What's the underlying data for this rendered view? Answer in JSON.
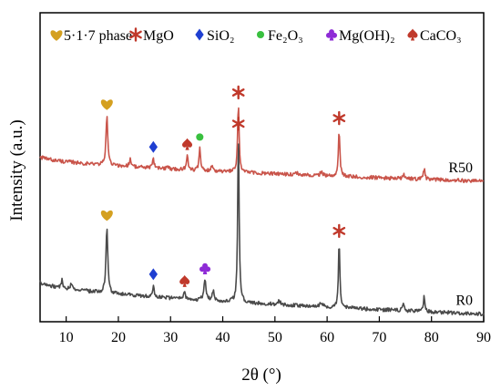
{
  "chart_data": {
    "type": "line",
    "xlabel": "2θ (°)",
    "ylabel": "Intensity (a.u.)",
    "xlim": [
      5,
      90
    ],
    "xticks": [
      10,
      20,
      30,
      40,
      50,
      60,
      70,
      80,
      90
    ],
    "ylim": [
      0,
      1
    ],
    "grid": false,
    "legend": {
      "placement": "top",
      "entries": [
        {
          "symbol": "heart",
          "color": "#d4a020",
          "label": "5·1·7 phase"
        },
        {
          "symbol": "asterisk",
          "color": "#c0392b",
          "label": "MgO"
        },
        {
          "symbol": "diamond",
          "color": "#1f3fd1",
          "label": "SiO₂"
        },
        {
          "symbol": "circle",
          "color": "#39c03f",
          "label": "Fe₂O₃"
        },
        {
          "symbol": "club",
          "color": "#8e2bd6",
          "label": "Mg(OH)₂"
        },
        {
          "symbol": "spade",
          "color": "#c0392b",
          "label": "CaCO₃"
        }
      ]
    },
    "series": [
      {
        "name": "R50",
        "color": "#c9544a",
        "baseline": 0.535,
        "drift": -0.08,
        "peaks": [
          {
            "x": 17.8,
            "height": 0.16,
            "width": 0.35
          },
          {
            "x": 22.3,
            "height": 0.025,
            "width": 0.4
          },
          {
            "x": 26.7,
            "height": 0.03,
            "width": 0.3
          },
          {
            "x": 29.4,
            "height": 0.015,
            "width": 0.3
          },
          {
            "x": 33.2,
            "height": 0.045,
            "width": 0.35
          },
          {
            "x": 35.6,
            "height": 0.07,
            "width": 0.3
          },
          {
            "x": 38.0,
            "height": 0.02,
            "width": 0.4
          },
          {
            "x": 43.0,
            "height": 0.22,
            "width": 0.3
          },
          {
            "x": 54.0,
            "height": 0.012,
            "width": 0.4
          },
          {
            "x": 58.9,
            "height": 0.015,
            "width": 0.4
          },
          {
            "x": 62.3,
            "height": 0.15,
            "width": 0.3
          },
          {
            "x": 74.7,
            "height": 0.015,
            "width": 0.3
          },
          {
            "x": 78.6,
            "height": 0.035,
            "width": 0.3
          }
        ]
      },
      {
        "name": "R0",
        "color": "#4a4a4a",
        "baseline": 0.13,
        "drift": -0.105,
        "peaks": [
          {
            "x": 9.2,
            "height": 0.025,
            "width": 0.3
          },
          {
            "x": 11.0,
            "height": 0.02,
            "width": 0.3
          },
          {
            "x": 17.8,
            "height": 0.215,
            "width": 0.35
          },
          {
            "x": 26.7,
            "height": 0.035,
            "width": 0.3
          },
          {
            "x": 32.7,
            "height": 0.02,
            "width": 0.35
          },
          {
            "x": 36.6,
            "height": 0.065,
            "width": 0.45
          },
          {
            "x": 38.2,
            "height": 0.03,
            "width": 0.4
          },
          {
            "x": 43.0,
            "height": 0.54,
            "width": 0.28
          },
          {
            "x": 50.8,
            "height": 0.012,
            "width": 0.5
          },
          {
            "x": 58.9,
            "height": 0.015,
            "width": 0.5
          },
          {
            "x": 62.3,
            "height": 0.21,
            "width": 0.28
          },
          {
            "x": 74.6,
            "height": 0.02,
            "width": 0.3
          },
          {
            "x": 78.6,
            "height": 0.05,
            "width": 0.3
          }
        ]
      }
    ],
    "annotations": [
      {
        "series": "R50",
        "x": 17.8,
        "symbol": "heart",
        "color": "#d4a020"
      },
      {
        "series": "R50",
        "x": 26.7,
        "symbol": "diamond",
        "color": "#1f3fd1"
      },
      {
        "series": "R50",
        "x": 33.2,
        "symbol": "spade",
        "color": "#c0392b"
      },
      {
        "series": "R50",
        "x": 35.6,
        "symbol": "circle",
        "color": "#39c03f"
      },
      {
        "series": "R50",
        "x": 43.0,
        "symbol": "asterisk",
        "color": "#c0392b"
      },
      {
        "series": "R50",
        "x": 62.3,
        "symbol": "asterisk",
        "color": "#c0392b"
      },
      {
        "series": "R0",
        "x": 17.8,
        "symbol": "heart",
        "color": "#d4a020"
      },
      {
        "series": "R0",
        "x": 26.7,
        "symbol": "diamond",
        "color": "#1f3fd1"
      },
      {
        "series": "R0",
        "x": 32.7,
        "symbol": "spade",
        "color": "#c0392b"
      },
      {
        "series": "R0",
        "x": 36.6,
        "symbol": "club",
        "color": "#8e2bd6"
      },
      {
        "series": "R0",
        "x": 43.0,
        "symbol": "asterisk",
        "color": "#c0392b"
      },
      {
        "series": "R0",
        "x": 62.3,
        "symbol": "asterisk",
        "color": "#c0392b"
      }
    ]
  }
}
